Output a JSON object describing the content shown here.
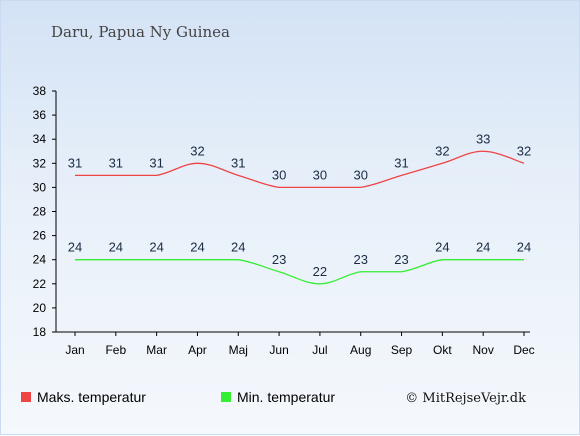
{
  "title": "Daru, Papua Ny Guinea",
  "credit": "© MitRejseVejr.dk",
  "chart_data": {
    "type": "line",
    "categories": [
      "Jan",
      "Feb",
      "Mar",
      "Apr",
      "Maj",
      "Jun",
      "Jul",
      "Aug",
      "Sep",
      "Okt",
      "Nov",
      "Dec"
    ],
    "ylim": [
      18,
      38
    ],
    "yticks": [
      18,
      20,
      22,
      24,
      26,
      28,
      30,
      32,
      34,
      36,
      38
    ],
    "grid": false,
    "legend_position": "bottom",
    "series": [
      {
        "name": "Maks. temperatur",
        "color": "#ee4444",
        "values": [
          31,
          31,
          31,
          32,
          31,
          30,
          30,
          30,
          31,
          32,
          33,
          32
        ]
      },
      {
        "name": "Min. temperatur",
        "color": "#33ee33",
        "values": [
          24,
          24,
          24,
          24,
          24,
          23,
          22,
          23,
          23,
          24,
          24,
          24
        ]
      }
    ]
  }
}
